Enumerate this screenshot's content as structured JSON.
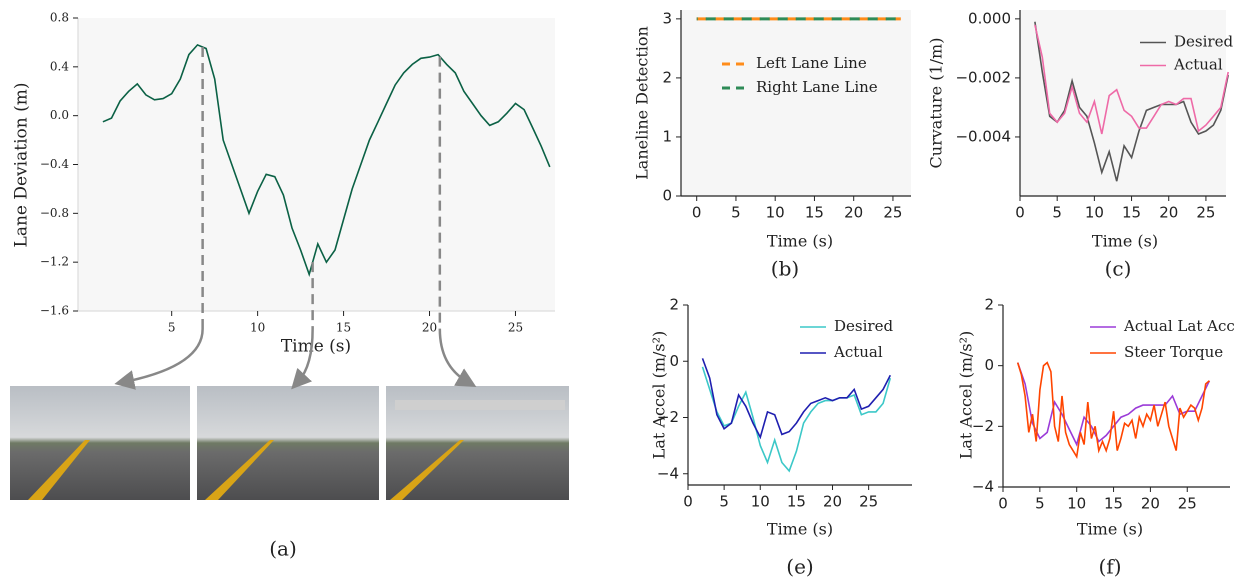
{
  "chart_data": [
    {
      "type": "line",
      "caption": "(a)",
      "xlabel": "Time (s)",
      "ylabel": "Lane Deviation (m)",
      "xlim": [
        -0.45,
        27.3
      ],
      "ylim": [
        -1.6,
        0.8
      ],
      "xticks": [
        5,
        10,
        15,
        20,
        25
      ],
      "yticks": [
        {
          "value": -1.6,
          "label": "−1.6"
        },
        {
          "value": -1.2,
          "label": "−1.2"
        },
        {
          "value": -0.8,
          "label": "−0.8"
        },
        {
          "value": -0.4,
          "label": "−0.4"
        },
        {
          "value": 0,
          "label": "0.0"
        },
        {
          "value": 0.4,
          "label": "0.4"
        },
        {
          "value": 0.8,
          "label": "0.8"
        }
      ],
      "color": "#0b6145",
      "x": [
        1,
        1.5,
        2,
        2.5,
        3,
        3.5,
        4,
        4.5,
        5,
        5.5,
        6,
        6.5,
        7,
        7.5,
        8,
        8.5,
        9,
        9.5,
        10,
        10.5,
        11,
        11.5,
        12,
        12.5,
        13,
        13.5,
        14,
        14.5,
        15,
        15.5,
        16,
        16.5,
        17,
        17.5,
        18,
        18.5,
        19,
        19.5,
        20,
        20.5,
        21,
        21.5,
        22,
        22.5,
        23,
        23.5,
        24,
        24.5,
        25,
        25.5,
        26,
        26.5,
        27
      ],
      "values": [
        -0.05,
        -0.02,
        0.12,
        0.2,
        0.26,
        0.17,
        0.13,
        0.14,
        0.18,
        0.3,
        0.5,
        0.58,
        0.55,
        0.3,
        -0.2,
        -0.4,
        -0.6,
        -0.8,
        -0.62,
        -0.48,
        -0.5,
        -0.65,
        -0.92,
        -1.1,
        -1.3,
        -1.05,
        -1.2,
        -1.1,
        -0.85,
        -0.6,
        -0.4,
        -0.2,
        -0.05,
        0.1,
        0.25,
        0.35,
        0.42,
        0.47,
        0.48,
        0.5,
        0.42,
        0.35,
        0.2,
        0.1,
        0.0,
        -0.08,
        -0.05,
        0.02,
        0.1,
        0.05,
        -0.1,
        -0.25,
        -0.42
      ],
      "vlines": [
        6.8,
        13.2,
        20.6
      ]
    },
    {
      "type": "line",
      "caption": "(b)",
      "xlabel": "Time (s)",
      "ylabel": "Laneline Detection",
      "xlim": [
        -2,
        27.3
      ],
      "ylim": [
        0,
        3.15
      ],
      "xticks": [
        0,
        5,
        10,
        15,
        20,
        25
      ],
      "yticks": [
        0,
        1,
        2,
        3
      ],
      "legend": "upper right",
      "series": [
        {
          "name": "Left Lane Line",
          "color": "#ff8c1a",
          "dash": true,
          "x": [
            0,
            26
          ],
          "values": [
            3,
            3
          ]
        },
        {
          "name": "Right Lane Line",
          "color": "#2e8b57",
          "dash": true,
          "x": [
            0,
            26
          ],
          "values": [
            3,
            3
          ]
        }
      ]
    },
    {
      "type": "line",
      "caption": "(c)",
      "xlabel": "Time (s)",
      "ylabel": "Curvature (1/m)",
      "xlim": [
        0,
        27.7
      ],
      "ylim": [
        -0.006,
        0.0003
      ],
      "xticks": [
        0,
        5,
        10,
        15,
        20,
        25
      ],
      "yticks": [
        {
          "value": -0.004,
          "label": "−0.004"
        },
        {
          "value": -0.002,
          "label": "−0.002"
        },
        {
          "value": 0,
          "label": "0.000"
        }
      ],
      "legend": "upper right",
      "series": [
        {
          "name": "Desired",
          "color": "#555555",
          "x": [
            2,
            3,
            4,
            5,
            6,
            7,
            8,
            9,
            10,
            11,
            12,
            13,
            14,
            15,
            16,
            17,
            18,
            19,
            20,
            21,
            22,
            23,
            24,
            25,
            26,
            27,
            28
          ],
          "values": [
            -0.0001,
            -0.0018,
            -0.0033,
            -0.0035,
            -0.0031,
            -0.0021,
            -0.003,
            -0.0033,
            -0.0042,
            -0.0052,
            -0.0045,
            -0.0055,
            -0.0043,
            -0.0047,
            -0.0038,
            -0.0031,
            -0.003,
            -0.0029,
            -0.0029,
            -0.0029,
            -0.0028,
            -0.0035,
            -0.0039,
            -0.0038,
            -0.0036,
            -0.0031,
            -0.0019
          ]
        },
        {
          "name": "Actual",
          "color": "#ee6aa7",
          "x": [
            2,
            3,
            4,
            5,
            6,
            7,
            8,
            9,
            10,
            11,
            12,
            13,
            14,
            15,
            16,
            17,
            18,
            19,
            20,
            21,
            22,
            23,
            24,
            25,
            26,
            27,
            28
          ],
          "values": [
            -0.0002,
            -0.0013,
            -0.0032,
            -0.0035,
            -0.0032,
            -0.0023,
            -0.0032,
            -0.0035,
            -0.0028,
            -0.0039,
            -0.0026,
            -0.0024,
            -0.0031,
            -0.0033,
            -0.0037,
            -0.0037,
            -0.0033,
            -0.0029,
            -0.0028,
            -0.0029,
            -0.0027,
            -0.0027,
            -0.0038,
            -0.0036,
            -0.0033,
            -0.003,
            -0.0018
          ]
        }
      ]
    },
    {
      "type": "line",
      "caption": "(e)",
      "xlabel": "Time (s)",
      "ylabel": "Lat Accel (m/s²)",
      "xlim": [
        0,
        31
      ],
      "ylim": [
        -4.4,
        2
      ],
      "xticks": [
        0,
        5,
        10,
        15,
        20,
        25
      ],
      "yticks": [
        {
          "value": -4,
          "label": "−4"
        },
        {
          "value": -2,
          "label": "−2"
        },
        0,
        2
      ],
      "legend": "upper right",
      "series": [
        {
          "name": "Desired",
          "color": "#3cc8c8",
          "x": [
            2,
            3,
            4,
            5,
            6,
            7,
            8,
            9,
            10,
            11,
            12,
            13,
            14,
            15,
            16,
            17,
            18,
            19,
            20,
            21,
            22,
            23,
            24,
            25,
            26,
            27,
            28
          ],
          "values": [
            -0.2,
            -1.0,
            -1.8,
            -2.3,
            -2.2,
            -1.6,
            -1.1,
            -2.0,
            -3.0,
            -3.6,
            -2.8,
            -3.6,
            -3.9,
            -3.2,
            -2.2,
            -1.8,
            -1.5,
            -1.4,
            -1.4,
            -1.3,
            -1.3,
            -1.2,
            -1.9,
            -1.8,
            -1.8,
            -1.5,
            -0.6
          ]
        },
        {
          "name": "Actual",
          "color": "#1f1fb0",
          "x": [
            2,
            3,
            4,
            5,
            6,
            7,
            8,
            9,
            10,
            11,
            12,
            13,
            14,
            15,
            16,
            17,
            18,
            19,
            20,
            21,
            22,
            23,
            24,
            25,
            26,
            27,
            28
          ],
          "values": [
            0.1,
            -0.6,
            -1.9,
            -2.4,
            -2.2,
            -1.2,
            -1.6,
            -2.2,
            -2.7,
            -1.8,
            -1.9,
            -2.6,
            -2.5,
            -2.2,
            -1.8,
            -1.5,
            -1.4,
            -1.3,
            -1.4,
            -1.3,
            -1.3,
            -1.0,
            -1.7,
            -1.6,
            -1.3,
            -1.0,
            -0.5
          ]
        }
      ]
    },
    {
      "type": "line",
      "caption": "(f)",
      "xlabel": "Time (s)",
      "ylabel": "Lat Accel (m/s²)",
      "xlim": [
        0,
        30.8
      ],
      "ylim": [
        -4,
        2
      ],
      "xticks": [
        0,
        5,
        10,
        15,
        20,
        25
      ],
      "yticks": [
        {
          "value": -4,
          "label": "−4"
        },
        {
          "value": -2,
          "label": "−2"
        },
        0,
        2
      ],
      "legend": "upper right",
      "series": [
        {
          "name": "Actual Lat Accel",
          "color": "#9b3bd8",
          "x": [
            2,
            3,
            4,
            5,
            6,
            7,
            8,
            9,
            10,
            11,
            12,
            13,
            14,
            15,
            16,
            17,
            18,
            19,
            20,
            21,
            22,
            23,
            24,
            25,
            26,
            27,
            28
          ],
          "values": [
            0.1,
            -0.6,
            -1.9,
            -2.4,
            -2.2,
            -1.2,
            -1.6,
            -2.1,
            -2.6,
            -1.7,
            -2.0,
            -2.5,
            -2.3,
            -2.0,
            -1.7,
            -1.6,
            -1.4,
            -1.3,
            -1.3,
            -1.3,
            -1.3,
            -1.0,
            -1.6,
            -1.5,
            -1.5,
            -1.0,
            -0.5
          ]
        },
        {
          "name": "Steer Torque",
          "color": "#ff4500",
          "x": [
            2,
            2.5,
            3,
            3.5,
            4,
            4.5,
            5,
            5.5,
            6,
            6.5,
            7,
            7.5,
            8,
            8.5,
            9,
            9.5,
            10,
            10.5,
            11,
            11.5,
            12,
            12.5,
            13,
            13.5,
            14,
            14.5,
            15,
            15.5,
            16,
            16.5,
            17,
            17.5,
            18,
            18.5,
            19,
            19.5,
            20,
            20.5,
            21,
            21.5,
            22,
            22.5,
            23,
            23.5,
            24,
            24.5,
            25,
            25.5,
            26,
            26.5,
            27,
            27.5,
            28
          ],
          "values": [
            0.1,
            -0.3,
            -1.0,
            -2.2,
            -1.6,
            -2.5,
            -0.8,
            0.0,
            0.1,
            -0.2,
            -2.0,
            -2.5,
            -1.0,
            -2.2,
            -2.6,
            -2.8,
            -3.0,
            -2.2,
            -2.6,
            -1.2,
            -2.4,
            -2.0,
            -2.8,
            -2.5,
            -2.8,
            -2.4,
            -1.5,
            -2.8,
            -2.4,
            -1.9,
            -2.0,
            -1.8,
            -2.4,
            -1.7,
            -2.0,
            -1.6,
            -1.8,
            -1.3,
            -2.0,
            -1.6,
            -1.2,
            -2.0,
            -2.4,
            -2.8,
            -1.4,
            -1.7,
            -1.5,
            -1.3,
            -1.4,
            -1.8,
            -1.4,
            -0.6,
            -0.5
          ]
        }
      ]
    }
  ]
}
